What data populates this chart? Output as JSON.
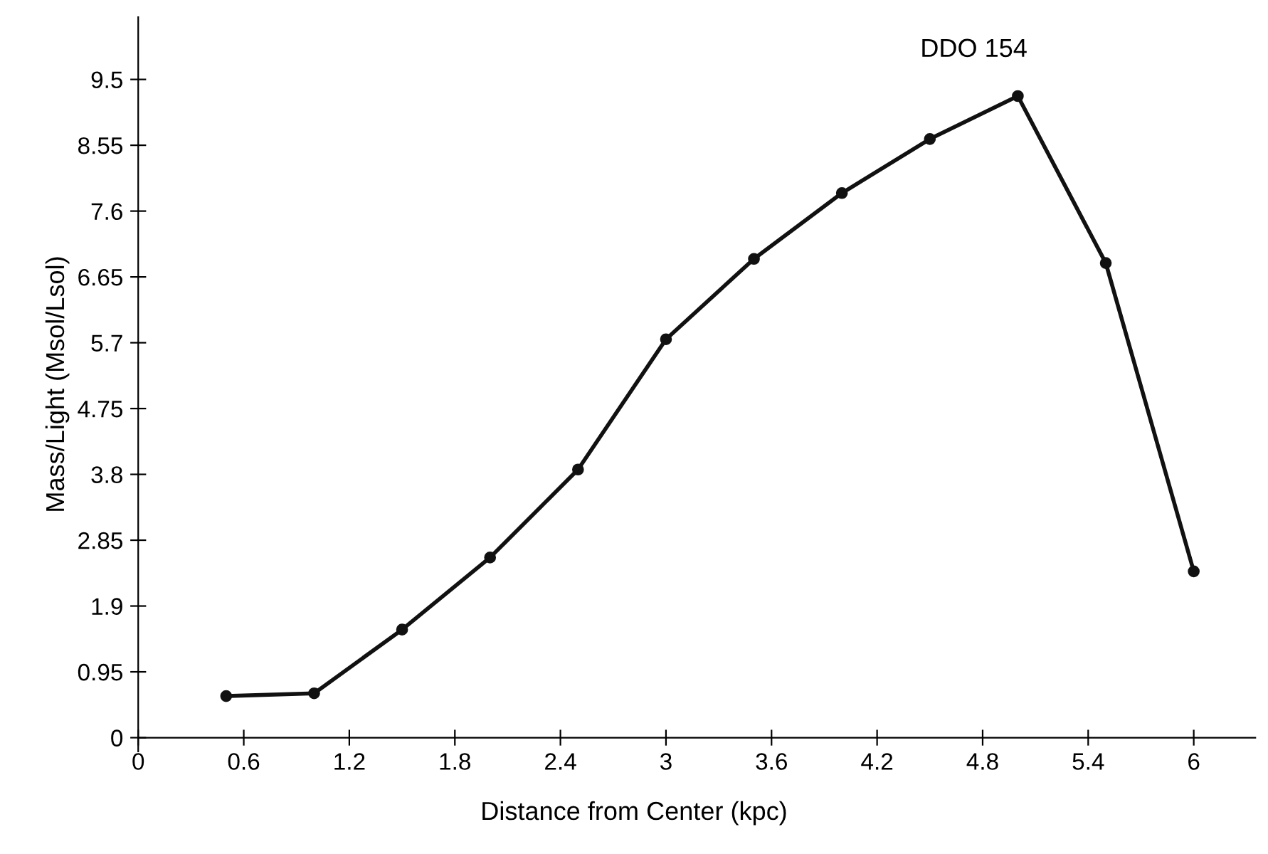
{
  "chart_data": {
    "type": "line",
    "xlabel": "Distance from Center (kpc)",
    "ylabel": "Mass/Light (Msol/Lsol)",
    "annotations": [
      "DDO 154"
    ],
    "x": [
      0.5,
      1.0,
      1.5,
      2.0,
      2.5,
      3.0,
      3.5,
      4.0,
      4.5,
      5.0,
      5.5,
      6.0
    ],
    "series": [
      {
        "color": "#111111",
        "values": [
          0.6,
          0.64,
          1.56,
          2.6,
          3.87,
          5.75,
          6.91,
          7.86,
          8.64,
          9.26,
          6.85,
          2.4
        ]
      }
    ],
    "xlim": [
      0,
      6.35
    ],
    "ylim": [
      -0.2,
      10.4
    ],
    "xticks": [
      0,
      0.6,
      1.2,
      1.8,
      2.4,
      3,
      3.6,
      4.2,
      4.8,
      5.4,
      6
    ],
    "yticks": [
      0,
      0.95,
      1.9,
      2.85,
      3.8,
      4.75,
      5.7,
      6.65,
      7.6,
      8.55,
      9.5
    ],
    "grid": false,
    "legend": false,
    "marker": "circle",
    "line_style": "solid"
  }
}
